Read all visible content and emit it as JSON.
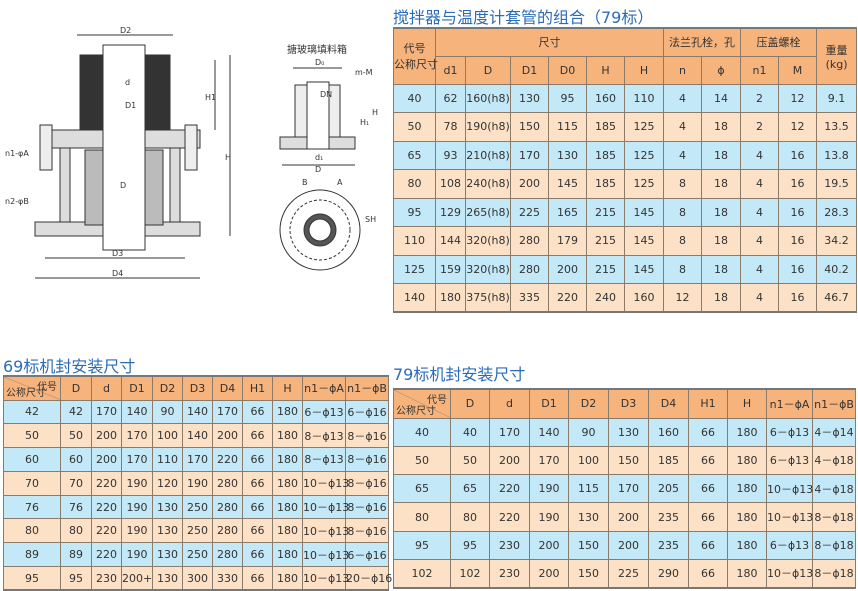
{
  "drawing": {
    "labels": {
      "D2": "D2",
      "d": "d",
      "D1": "D1",
      "H1": "H1",
      "H": "H",
      "D": "D",
      "D3": "D3",
      "D4": "D4",
      "n1": "n1-φA",
      "n2": "n2-φB"
    },
    "box_title": "搪玻璃填料箱",
    "box_labels": {
      "D0": "D₀",
      "DN": "DN",
      "mM": "m-M",
      "H": "H",
      "H1": "H₁",
      "d": "d₁",
      "Dbot": "D",
      "B": "B",
      "A": "A",
      "SH": "SH"
    }
  },
  "table79": {
    "title": "搅拌器与温度计套管的组合（79标）",
    "header": {
      "code": "代号\n公称尺寸",
      "code_line1": "代号",
      "code_line2": "公称尺寸",
      "size_group": "尺寸",
      "flange_group": "法兰孔栓，孔",
      "gland_group": "压盖螺栓",
      "weight_line1": "重量",
      "weight_line2": "(kg)",
      "columns": [
        "d1",
        "D",
        "D1",
        "D0",
        "H",
        "H",
        "n",
        "ϕ",
        "n1",
        "M"
      ]
    },
    "rows": [
      [
        "40",
        "62",
        "160(h8)",
        "130",
        "95",
        "160",
        "110",
        "4",
        "14",
        "2",
        "12",
        "9.1"
      ],
      [
        "50",
        "78",
        "190(h8)",
        "150",
        "115",
        "185",
        "125",
        "4",
        "18",
        "2",
        "12",
        "13.5"
      ],
      [
        "65",
        "93",
        "210(h8)",
        "170",
        "130",
        "185",
        "125",
        "4",
        "18",
        "4",
        "16",
        "13.8"
      ],
      [
        "80",
        "108",
        "240(h8)",
        "200",
        "145",
        "185",
        "125",
        "8",
        "18",
        "4",
        "16",
        "19.5"
      ],
      [
        "95",
        "129",
        "265(h8)",
        "225",
        "165",
        "215",
        "145",
        "8",
        "18",
        "4",
        "16",
        "28.3"
      ],
      [
        "110",
        "144",
        "320(h8)",
        "280",
        "179",
        "215",
        "145",
        "8",
        "18",
        "4",
        "16",
        "34.2"
      ],
      [
        "125",
        "159",
        "320(h8)",
        "280",
        "200",
        "215",
        "145",
        "8",
        "18",
        "4",
        "16",
        "40.2"
      ],
      [
        "140",
        "180",
        "375(h8)",
        "335",
        "220",
        "240",
        "160",
        "12",
        "18",
        "4",
        "16",
        "46.7"
      ]
    ]
  },
  "table69seal": {
    "title": "69标机封安装尺寸",
    "corner_top": "代号",
    "corner_bottom": "公称尺寸",
    "columns": [
      "D",
      "d",
      "D1",
      "D2",
      "D3",
      "D4",
      "H1",
      "H",
      "n1－ϕA",
      "n1－ϕB"
    ],
    "rows": [
      [
        "42",
        "42",
        "170",
        "140",
        "90",
        "140",
        "170",
        "66",
        "180",
        "6－ϕ13",
        "6－ϕ16"
      ],
      [
        "50",
        "50",
        "200",
        "170",
        "100",
        "140",
        "200",
        "66",
        "180",
        "8－ϕ13",
        "8－ϕ16"
      ],
      [
        "60",
        "60",
        "200",
        "170",
        "110",
        "170",
        "220",
        "66",
        "180",
        "8－ϕ13",
        "8－ϕ16"
      ],
      [
        "70",
        "70",
        "220",
        "190",
        "120",
        "190",
        "280",
        "66",
        "180",
        "10－ϕ13",
        "8－ϕ16"
      ],
      [
        "76",
        "76",
        "220",
        "190",
        "130",
        "250",
        "280",
        "66",
        "180",
        "10－ϕ13",
        "8－ϕ16"
      ],
      [
        "80",
        "80",
        "220",
        "190",
        "130",
        "250",
        "280",
        "66",
        "180",
        "10－ϕ13",
        "8－ϕ16"
      ],
      [
        "89",
        "89",
        "220",
        "190",
        "130",
        "250",
        "280",
        "66",
        "180",
        "10－ϕ13",
        "6－ϕ16"
      ],
      [
        "95",
        "95",
        "230",
        "200+",
        "130",
        "300",
        "330",
        "66",
        "180",
        "10－ϕ13",
        "20－ϕ16"
      ]
    ]
  },
  "table79seal": {
    "title": "79标机封安装尺寸",
    "corner_top": "代号",
    "corner_bottom": "公称尺寸",
    "columns": [
      "D",
      "d",
      "D1",
      "D2",
      "D3",
      "D4",
      "H1",
      "H",
      "n1－ϕA",
      "n1－ϕB"
    ],
    "rows": [
      [
        "40",
        "40",
        "170",
        "140",
        "90",
        "130",
        "160",
        "66",
        "180",
        "6－ϕ13",
        "4－ϕ14"
      ],
      [
        "50",
        "50",
        "200",
        "170",
        "100",
        "150",
        "185",
        "66",
        "180",
        "6－ϕ13",
        "4－ϕ18"
      ],
      [
        "65",
        "65",
        "220",
        "190",
        "115",
        "170",
        "205",
        "66",
        "180",
        "10－ϕ13",
        "4－ϕ18"
      ],
      [
        "80",
        "80",
        "220",
        "190",
        "130",
        "200",
        "235",
        "66",
        "180",
        "10－ϕ13",
        "8－ϕ18"
      ],
      [
        "95",
        "95",
        "230",
        "200",
        "150",
        "200",
        "235",
        "66",
        "180",
        "6－ϕ13",
        "8－ϕ18"
      ],
      [
        "102",
        "102",
        "230",
        "200",
        "150",
        "225",
        "290",
        "66",
        "180",
        "10－ϕ13",
        "8－ϕ18"
      ]
    ]
  },
  "colors": {
    "header": "#f6b37b",
    "row_blue": "#c3e9f9",
    "row_peach": "#fde1c6",
    "title": "#2b6cb8"
  }
}
